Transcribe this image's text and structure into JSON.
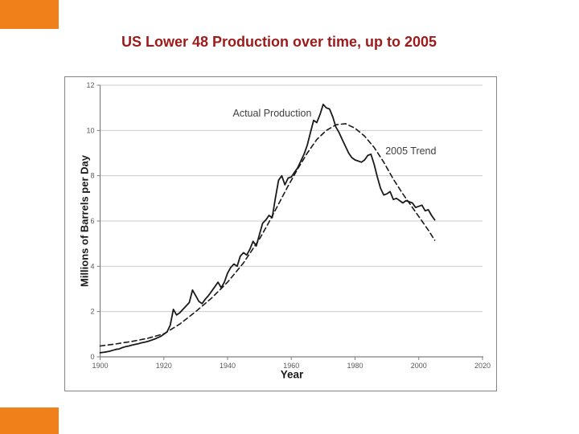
{
  "slide": {
    "title": "US Lower 48 Production over time, up to 2005",
    "colors": {
      "accent_orange": "#F0801A",
      "title_red": "#9B1B1B",
      "tick_label_grey": "#595959",
      "gridline_grey": "#CBCBCB",
      "axis_grey": "#7F7F7F",
      "line_black": "#1A1A1A"
    }
  },
  "chart_data": {
    "type": "line",
    "title": "",
    "xlabel": "Year",
    "ylabel": "Millions of Barrels per Day",
    "xlim": [
      1900,
      2020
    ],
    "ylim": [
      0,
      12
    ],
    "x_ticks": [
      1900,
      1920,
      1940,
      1960,
      1980,
      2000,
      2020
    ],
    "y_ticks": [
      0,
      2,
      4,
      6,
      8,
      10,
      12
    ],
    "grid": "horizontal",
    "legend_position": "none-inline-annotations",
    "annotations": [
      {
        "text": "Actual Production",
        "x": 1954,
        "y": 10.75
      },
      {
        "text": "2005 Trend",
        "x": 1997.5,
        "y": 9.1
      }
    ],
    "series": [
      {
        "name": "Actual Production",
        "line_style": "solid",
        "color": "#1A1A1A",
        "x_start": 1900,
        "x_step": 1,
        "values": [
          0.18,
          0.2,
          0.22,
          0.25,
          0.29,
          0.33,
          0.35,
          0.41,
          0.45,
          0.48,
          0.52,
          0.55,
          0.58,
          0.62,
          0.65,
          0.68,
          0.73,
          0.78,
          0.84,
          0.9,
          1.0,
          1.1,
          1.4,
          2.1,
          1.85,
          1.95,
          2.1,
          2.25,
          2.4,
          2.95,
          2.7,
          2.45,
          2.35,
          2.55,
          2.7,
          2.9,
          3.1,
          3.3,
          3.05,
          3.3,
          3.7,
          3.95,
          4.1,
          4.0,
          4.45,
          4.6,
          4.5,
          4.75,
          5.1,
          4.9,
          5.4,
          5.9,
          6.05,
          6.25,
          6.15,
          7.0,
          7.8,
          8.0,
          7.6,
          7.9,
          7.95,
          8.15,
          8.35,
          8.65,
          8.95,
          9.35,
          9.9,
          10.45,
          10.35,
          10.7,
          11.15,
          11.0,
          10.95,
          10.6,
          10.15,
          9.9,
          9.6,
          9.3,
          9.0,
          8.8,
          8.7,
          8.65,
          8.6,
          8.7,
          8.9,
          8.95,
          8.5,
          7.95,
          7.45,
          7.15,
          7.2,
          7.3,
          6.95,
          7.0,
          6.9,
          6.8,
          6.9,
          6.85,
          6.8,
          6.6,
          6.65,
          6.7,
          6.45,
          6.5,
          6.25,
          6.05
        ]
      },
      {
        "name": "2005 Trend",
        "line_style": "dashed",
        "color": "#1A1A1A",
        "points": [
          [
            1900,
            0.48
          ],
          [
            1905,
            0.57
          ],
          [
            1910,
            0.68
          ],
          [
            1915,
            0.82
          ],
          [
            1920,
            1.02
          ],
          [
            1925,
            1.45
          ],
          [
            1930,
            2.0
          ],
          [
            1935,
            2.6
          ],
          [
            1940,
            3.3
          ],
          [
            1945,
            4.15
          ],
          [
            1950,
            5.2
          ],
          [
            1953,
            5.95
          ],
          [
            1956,
            6.75
          ],
          [
            1959,
            7.55
          ],
          [
            1962,
            8.3
          ],
          [
            1965,
            9.0
          ],
          [
            1968,
            9.6
          ],
          [
            1971,
            10.0
          ],
          [
            1974,
            10.25
          ],
          [
            1977,
            10.3
          ],
          [
            1980,
            10.1
          ],
          [
            1983,
            9.75
          ],
          [
            1986,
            9.25
          ],
          [
            1989,
            8.6
          ],
          [
            1992,
            7.85
          ],
          [
            1995,
            7.2
          ],
          [
            1998,
            6.6
          ],
          [
            2001,
            6.0
          ],
          [
            2003,
            5.6
          ],
          [
            2005,
            5.15
          ]
        ]
      }
    ]
  }
}
